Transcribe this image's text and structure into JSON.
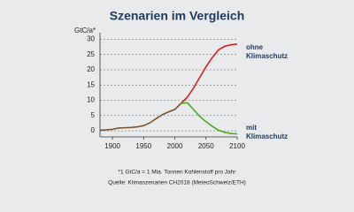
{
  "chart_data": {
    "type": "line",
    "title": "Szenarien im Vergleich",
    "y_label": "GtC/a*",
    "x": [
      1880,
      1890,
      1900,
      1910,
      1920,
      1930,
      1940,
      1950,
      1960,
      1970,
      1980,
      1990,
      2000,
      2010,
      2020,
      2030,
      2040,
      2050,
      2060,
      2070,
      2080,
      2090,
      2100
    ],
    "series": [
      {
        "color": "#7a5230",
        "values": [
          0.2,
          0.3,
          0.5,
          0.9,
          1.0,
          1.1,
          1.3,
          1.7,
          2.6,
          4.0,
          5.3,
          6.2,
          7.0,
          9.0,
          null,
          null,
          null,
          null,
          null,
          null,
          null,
          null,
          null
        ]
      },
      {
        "name": "ohne Klimaschutz",
        "color": "#d42020",
        "values": [
          null,
          null,
          null,
          null,
          null,
          null,
          null,
          null,
          null,
          null,
          null,
          null,
          null,
          9.0,
          11,
          14,
          17.5,
          21,
          24,
          26.5,
          27.7,
          28.2,
          28.4
        ]
      },
      {
        "name": "mit Klimaschutz",
        "color": "#4aaa28",
        "values": [
          null,
          null,
          null,
          null,
          null,
          null,
          null,
          null,
          null,
          null,
          null,
          null,
          null,
          9.0,
          9.2,
          7,
          4.7,
          3,
          1.5,
          0.2,
          -0.5,
          -0.9,
          -1
        ]
      }
    ],
    "xlim": [
      1880,
      2100
    ],
    "xticks": [
      1900,
      1950,
      2000,
      2050,
      2100
    ],
    "ylim": [
      -2,
      31
    ],
    "yticks": [
      0,
      5,
      10,
      15,
      20,
      25,
      30
    ],
    "grid": true,
    "notes": [
      "*1 GtC/a = 1 Mia. Tonnen Kohlenstoff pro Jahr",
      "Quelle: Klimaszenarien CH2018 (MeteoSchweiz/ETH)"
    ]
  }
}
